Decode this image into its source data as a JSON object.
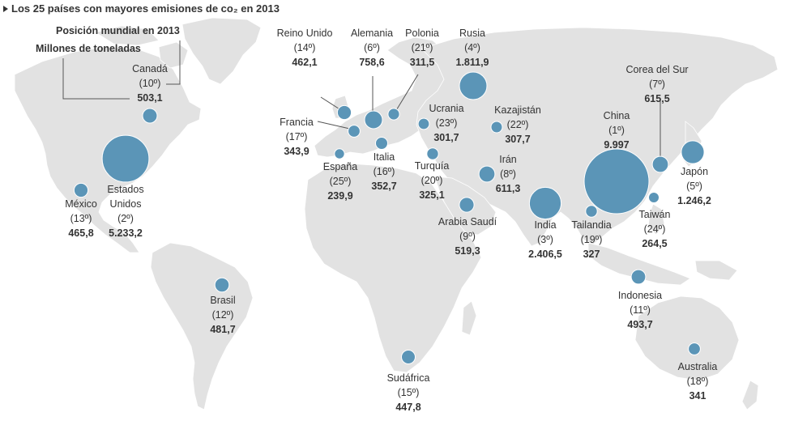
{
  "title": "Los 25 países con mayores emisiones de co₂ en 2013",
  "legend": {
    "rank_label": "Posición mundial en 2013",
    "value_label": "Millones de toneladas"
  },
  "colors": {
    "bubble": "#5b95b7",
    "bubble_stroke": "#ffffff",
    "land": "#e2e2e2",
    "land_stroke": "#ffffff",
    "text": "#333333"
  },
  "countries": [
    {
      "id": "canada",
      "name": "Canadá",
      "rank": "(10º)",
      "value": "503,1",
      "emissions": 503.1
    },
    {
      "id": "eeuu",
      "name": "Estados Unidos",
      "name_lines": [
        "Estados",
        "Unidos"
      ],
      "rank": "(2º)",
      "value": "5.233,2",
      "emissions": 5233.2
    },
    {
      "id": "mexico",
      "name": "México",
      "rank": "(13º)",
      "value": "465,8",
      "emissions": 465.8
    },
    {
      "id": "brasil",
      "name": "Brasil",
      "rank": "(12º)",
      "value": "481,7",
      "emissions": 481.7
    },
    {
      "id": "reino-unido",
      "name": "Reino Unido",
      "rank": "(14º)",
      "value": "462,1",
      "emissions": 462.1
    },
    {
      "id": "alemania",
      "name": "Alemania",
      "rank": "(6º)",
      "value": "758,6",
      "emissions": 758.6
    },
    {
      "id": "polonia",
      "name": "Polonia",
      "rank": "(21º)",
      "value": "311,5",
      "emissions": 311.5
    },
    {
      "id": "rusia",
      "name": "Rusia",
      "rank": "(4º)",
      "value": "1.811,9",
      "emissions": 1811.9
    },
    {
      "id": "francia",
      "name": "Francia",
      "rank": "(17º)",
      "value": "343,9",
      "emissions": 343.9
    },
    {
      "id": "espana",
      "name": "España",
      "rank": "(25º)",
      "value": "239,9",
      "emissions": 239.9
    },
    {
      "id": "italia",
      "name": "Italia",
      "rank": "(16º)",
      "value": "352,7",
      "emissions": 352.7
    },
    {
      "id": "ucrania",
      "name": "Ucrania",
      "rank": "(23º)",
      "value": "301,7",
      "emissions": 301.7
    },
    {
      "id": "turquia",
      "name": "Turquía",
      "rank": "(20º)",
      "value": "325,1",
      "emissions": 325.1
    },
    {
      "id": "kazajistan",
      "name": "Kazajistán",
      "rank": "(22º)",
      "value": "307,7",
      "emissions": 307.7
    },
    {
      "id": "iran",
      "name": "Irán",
      "rank": "(8º)",
      "value": "611,3",
      "emissions": 611.3
    },
    {
      "id": "arabia-saudi",
      "name": "Arabia Saudí",
      "rank": "(9º)",
      "value": "519,3",
      "emissions": 519.3
    },
    {
      "id": "india",
      "name": "India",
      "rank": "(3º)",
      "value": "2.406,5",
      "emissions": 2406.5
    },
    {
      "id": "china",
      "name": "China",
      "rank": "(1º)",
      "value": "9.997",
      "emissions": 9997
    },
    {
      "id": "corea-del-sur",
      "name": "Corea del Sur",
      "rank": "(7º)",
      "value": "615,5",
      "emissions": 615.5
    },
    {
      "id": "japon",
      "name": "Japón",
      "rank": "(5º)",
      "value": "1.246,2",
      "emissions": 1246.2
    },
    {
      "id": "taiwan",
      "name": "Taiwán",
      "rank": "(24º)",
      "value": "264,5",
      "emissions": 264.5
    },
    {
      "id": "tailandia",
      "name": "Tailandia",
      "rank": "(19º)",
      "value": "327",
      "emissions": 327
    },
    {
      "id": "indonesia",
      "name": "Indonesia",
      "rank": "(11º)",
      "value": "493,7",
      "emissions": 493.7
    },
    {
      "id": "sudafrica",
      "name": "Sudáfrica",
      "rank": "(15º)",
      "value": "447,8",
      "emissions": 447.8
    },
    {
      "id": "australia",
      "name": "Australia",
      "rank": "(18º)",
      "value": "341",
      "emissions": 341
    }
  ]
}
